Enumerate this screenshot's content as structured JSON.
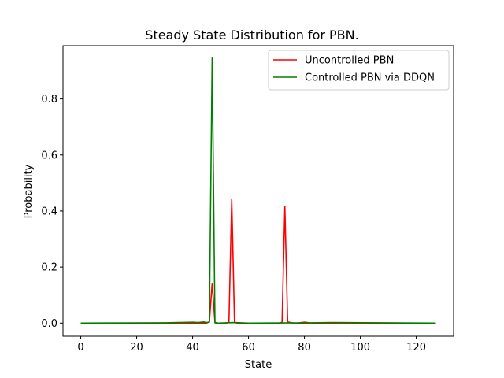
{
  "chart_data": {
    "type": "line",
    "title": "Steady State Distribution for PBN.",
    "xlabel": "State",
    "ylabel": "Probability",
    "xlim": [
      -6.35,
      133.35
    ],
    "ylim": [
      -0.047,
      0.99
    ],
    "xticks": [
      0,
      20,
      40,
      60,
      80,
      100,
      120
    ],
    "yticks": [
      0.0,
      0.2,
      0.4,
      0.6,
      0.8
    ],
    "ytick_labels": [
      "0.0",
      "0.2",
      "0.4",
      "0.6",
      "0.8"
    ],
    "grid": false,
    "legend_position": "top-right",
    "series": [
      {
        "name": "Uncontrolled PBN",
        "color": "#ff0000",
        "points": [
          [
            0,
            0
          ],
          [
            45,
            0
          ],
          [
            46,
            0.005
          ],
          [
            47,
            0.142
          ],
          [
            48,
            0.002
          ],
          [
            49,
            0
          ],
          [
            52,
            0
          ],
          [
            53,
            0.003
          ],
          [
            54,
            0.441
          ],
          [
            55,
            0.002
          ],
          [
            56,
            0
          ],
          [
            71,
            0
          ],
          [
            72,
            0.003
          ],
          [
            73,
            0.416
          ],
          [
            74,
            0.004
          ],
          [
            75,
            0.002
          ],
          [
            76,
            0
          ],
          [
            127,
            0
          ]
        ]
      },
      {
        "name": "Controlled PBN via DDQN",
        "color": "#008000",
        "points": [
          [
            0,
            0
          ],
          [
            30,
            0.001
          ],
          [
            40,
            0.003
          ],
          [
            42,
            0.002
          ],
          [
            44,
            0.004
          ],
          [
            45,
            0.002
          ],
          [
            46,
            0.003
          ],
          [
            47,
            0.946
          ],
          [
            48,
            0.001
          ],
          [
            49,
            0
          ],
          [
            55,
            0.002
          ],
          [
            60,
            0
          ],
          [
            78,
            0.001
          ],
          [
            80,
            0.003
          ],
          [
            82,
            0.001
          ],
          [
            90,
            0.002
          ],
          [
            127,
            0
          ]
        ]
      }
    ]
  }
}
